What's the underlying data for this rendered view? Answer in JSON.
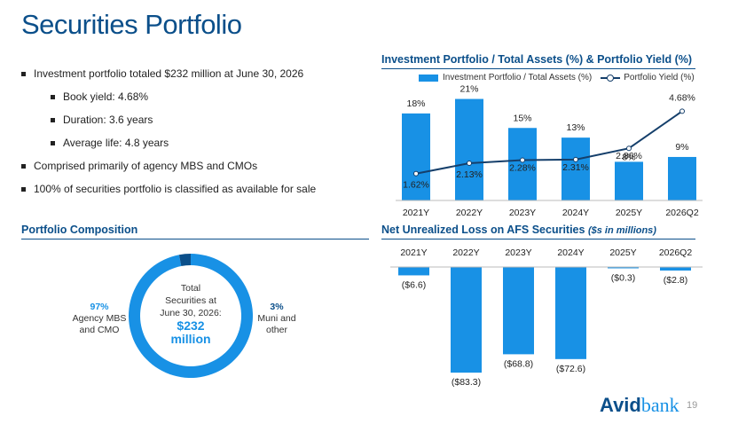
{
  "title": "Securities Portfolio",
  "bullets": [
    "Investment portfolio totaled $232 million at June 30, 2026",
    "Book yield: 4.68%",
    "Duration: 3.6 years",
    "Average life: 4.8 years",
    "Comprised primarily of agency MBS and CMOs",
    "100% of securities portfolio is classified as available for sale"
  ],
  "composition": {
    "title": "Portfolio Composition",
    "center_lines": [
      "Total",
      "Securities at",
      "June 30, 2026:"
    ],
    "center_amount_lines": [
      "$232",
      "million"
    ],
    "segments": [
      {
        "pct": "97%",
        "label_lines": [
          "Agency MBS",
          "and CMO"
        ],
        "value": 97,
        "color": "#1891e5"
      },
      {
        "pct": "3%",
        "label_lines": [
          "Muni and",
          "other"
        ],
        "value": 3,
        "color": "#0b4f8a"
      }
    ]
  },
  "chart_data": [
    {
      "type": "bar",
      "title": "Investment Portfolio / Total Assets (%) & Portfolio Yield (%)",
      "categories": [
        "2021Y",
        "2022Y",
        "2023Y",
        "2024Y",
        "2025Y",
        "2026Q2"
      ],
      "series": [
        {
          "name": "Investment Portfolio / Total Assets (%)",
          "type": "bar",
          "values": [
            18,
            21,
            15,
            13,
            8,
            9
          ],
          "labels": [
            "18%",
            "21%",
            "15%",
            "13%",
            "8%",
            "9%"
          ],
          "color": "#1891e5"
        },
        {
          "name": "Portfolio Yield (%)",
          "type": "line",
          "values": [
            1.62,
            2.13,
            2.28,
            2.31,
            2.86,
            4.68
          ],
          "labels": [
            "1.62%",
            "2.13%",
            "2.28%",
            "2.31%",
            "2.86%",
            "4.68%"
          ],
          "color": "#153f6b"
        }
      ],
      "legend_position": "top"
    },
    {
      "type": "bar",
      "title": "Net Unrealized Loss on AFS Securities",
      "subtitle": "($s in millions)",
      "categories": [
        "2021Y",
        "2022Y",
        "2023Y",
        "2024Y",
        "2025Y",
        "2026Q2"
      ],
      "values": [
        -6.6,
        -83.3,
        -68.8,
        -72.6,
        -0.3,
        -2.8
      ],
      "labels": [
        "($6.6)",
        "($83.3)",
        "($68.8)",
        "($72.6)",
        "($0.3)",
        "($2.8)"
      ],
      "color": "#1891e5"
    }
  ],
  "logo": {
    "part1": "Avid",
    "part2": "bank"
  },
  "page_number": "19"
}
